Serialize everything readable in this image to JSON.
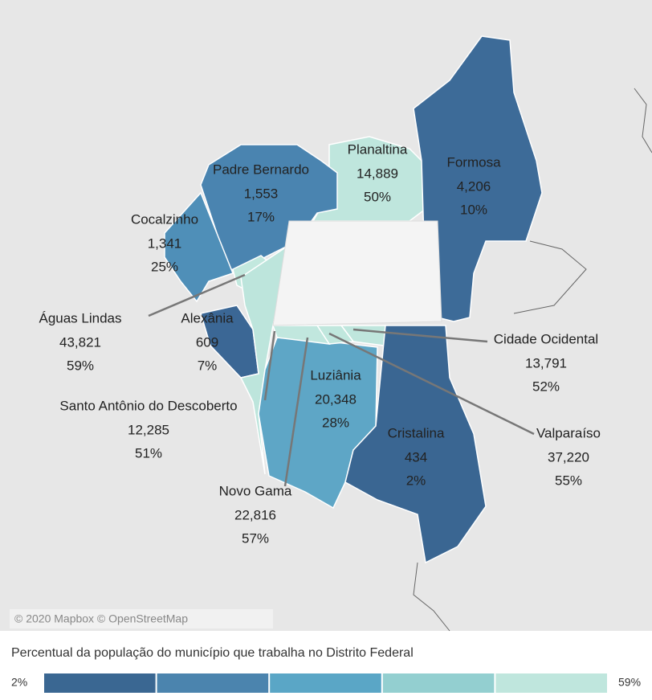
{
  "map": {
    "regions": [
      {
        "name": "Planaltina",
        "workers": "14,889",
        "percent": "50%",
        "color": "#bfe6dd"
      },
      {
        "name": "Formosa",
        "workers": "4,206",
        "percent": "10%",
        "color": "#3d6b98"
      },
      {
        "name": "Padre Bernardo",
        "workers": "1,553",
        "percent": "17%",
        "color": "#4a84b0"
      },
      {
        "name": "Cocalzinho",
        "workers": "1,341",
        "percent": "25%",
        "color": "#4f8fb8"
      },
      {
        "name": "Águas Lindas",
        "workers": "43,821",
        "percent": "59%",
        "color": "#c2e8de"
      },
      {
        "name": "Alexânia",
        "workers": "609",
        "percent": "7%",
        "color": "#3b6795"
      },
      {
        "name": "Cidade Ocidental",
        "workers": "13,791",
        "percent": "52%",
        "color": "#bfe6dd"
      },
      {
        "name": "Santo Antônio do Descoberto",
        "workers": "12,285",
        "percent": "51%",
        "color": "#bde5dc"
      },
      {
        "name": "Luziânia",
        "workers": "20,348",
        "percent": "28%",
        "color": "#5ea6c6"
      },
      {
        "name": "Cristalina",
        "workers": "434",
        "percent": "2%",
        "color": "#3a6692"
      },
      {
        "name": "Valparaíso",
        "workers": "37,220",
        "percent": "55%",
        "color": "#c0e7dd"
      },
      {
        "name": "Novo Gama",
        "workers": "22,816",
        "percent": "57%",
        "color": "#c1e7de"
      }
    ],
    "attribution": "© 2020 Mapbox © OpenStreetMap"
  },
  "legend": {
    "title": "Percentual da população do município que trabalha no Distrito Federal",
    "min": "2%",
    "max": "59%",
    "colors": [
      "#3a6792",
      "#4b84ae",
      "#5aa6c6",
      "#93cfd0",
      "#bfe6dd"
    ]
  }
}
